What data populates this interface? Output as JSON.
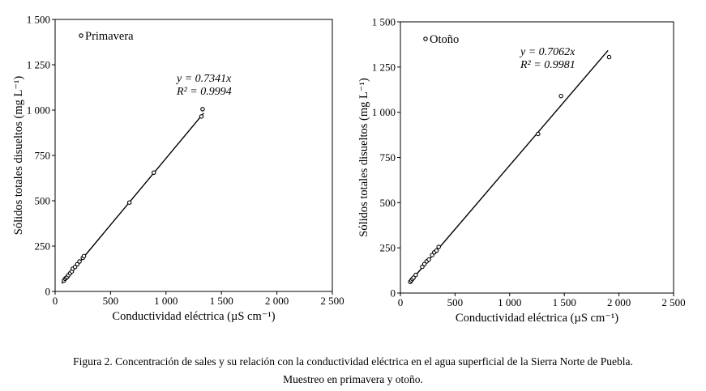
{
  "caption": {
    "line1": "Figura 2. Concentración de sales y su relación con la conductividad eléctrica en el agua superficial de la Sierra Norte de Puebla.",
    "line2": "Muestreo en primavera y otoño."
  },
  "chart_data": [
    {
      "type": "scatter",
      "legend": "Primavera",
      "legend_position": "top-left",
      "xlabel": "Conductividad eléctrica (µS cm⁻¹)",
      "ylabel": "Sólidos totales disueltos (mg L⁻¹)",
      "xlim": [
        0,
        2500
      ],
      "ylim": [
        0,
        1500
      ],
      "xticks": [
        0,
        500,
        1000,
        1500,
        2000,
        2500
      ],
      "xtick_labels": [
        "0",
        "500",
        "1 000",
        "1 500",
        "2 000",
        "2 500"
      ],
      "yticks": [
        0,
        250,
        500,
        750,
        1000,
        1250,
        1500
      ],
      "ytick_labels": [
        "0",
        "250",
        "500",
        "750",
        "1 000",
        "1 250",
        "1 500"
      ],
      "grid": false,
      "equation": "y = 0.7341x",
      "r2_label": "R² = 0.9994",
      "slope": 0.7341,
      "r2": 0.9994,
      "trendline_x": [
        60,
        1340
      ],
      "points": [
        {
          "x": 80,
          "y": 60
        },
        {
          "x": 90,
          "y": 70
        },
        {
          "x": 100,
          "y": 75
        },
        {
          "x": 110,
          "y": 80
        },
        {
          "x": 120,
          "y": 90
        },
        {
          "x": 135,
          "y": 100
        },
        {
          "x": 150,
          "y": 110
        },
        {
          "x": 160,
          "y": 125
        },
        {
          "x": 180,
          "y": 135
        },
        {
          "x": 200,
          "y": 150
        },
        {
          "x": 220,
          "y": 165
        },
        {
          "x": 250,
          "y": 185
        },
        {
          "x": 260,
          "y": 195
        },
        {
          "x": 670,
          "y": 490
        },
        {
          "x": 890,
          "y": 655
        },
        {
          "x": 1320,
          "y": 965
        },
        {
          "x": 1330,
          "y": 1005
        }
      ]
    },
    {
      "type": "scatter",
      "legend": "Otoño",
      "legend_position": "top-left",
      "xlabel": "Conductividad eléctrica (µS cm⁻¹)",
      "ylabel": "Sólidos totales disueltos (mg L⁻¹)",
      "xlim": [
        0,
        2500
      ],
      "ylim": [
        0,
        1500
      ],
      "xticks": [
        0,
        500,
        1000,
        1500,
        2000,
        2500
      ],
      "xtick_labels": [
        "0",
        "500",
        "1 000",
        "1 500",
        "2 000",
        "2 500"
      ],
      "yticks": [
        0,
        250,
        500,
        750,
        1000,
        1250,
        1500
      ],
      "ytick_labels": [
        "0",
        "250",
        "500",
        "750",
        "1 000",
        "1 250",
        "1 500"
      ],
      "grid": false,
      "equation": "y = 0.7062x",
      "r2_label": "R² = 0.9981",
      "slope": 0.7062,
      "r2": 0.9981,
      "trendline_x": [
        80,
        1900
      ],
      "points": [
        {
          "x": 90,
          "y": 62
        },
        {
          "x": 100,
          "y": 70
        },
        {
          "x": 110,
          "y": 78
        },
        {
          "x": 120,
          "y": 85
        },
        {
          "x": 140,
          "y": 100
        },
        {
          "x": 200,
          "y": 145
        },
        {
          "x": 220,
          "y": 160
        },
        {
          "x": 240,
          "y": 175
        },
        {
          "x": 260,
          "y": 185
        },
        {
          "x": 290,
          "y": 210
        },
        {
          "x": 310,
          "y": 225
        },
        {
          "x": 330,
          "y": 235
        },
        {
          "x": 350,
          "y": 255
        },
        {
          "x": 1260,
          "y": 880
        },
        {
          "x": 1470,
          "y": 1090
        },
        {
          "x": 1910,
          "y": 1305
        }
      ]
    }
  ]
}
